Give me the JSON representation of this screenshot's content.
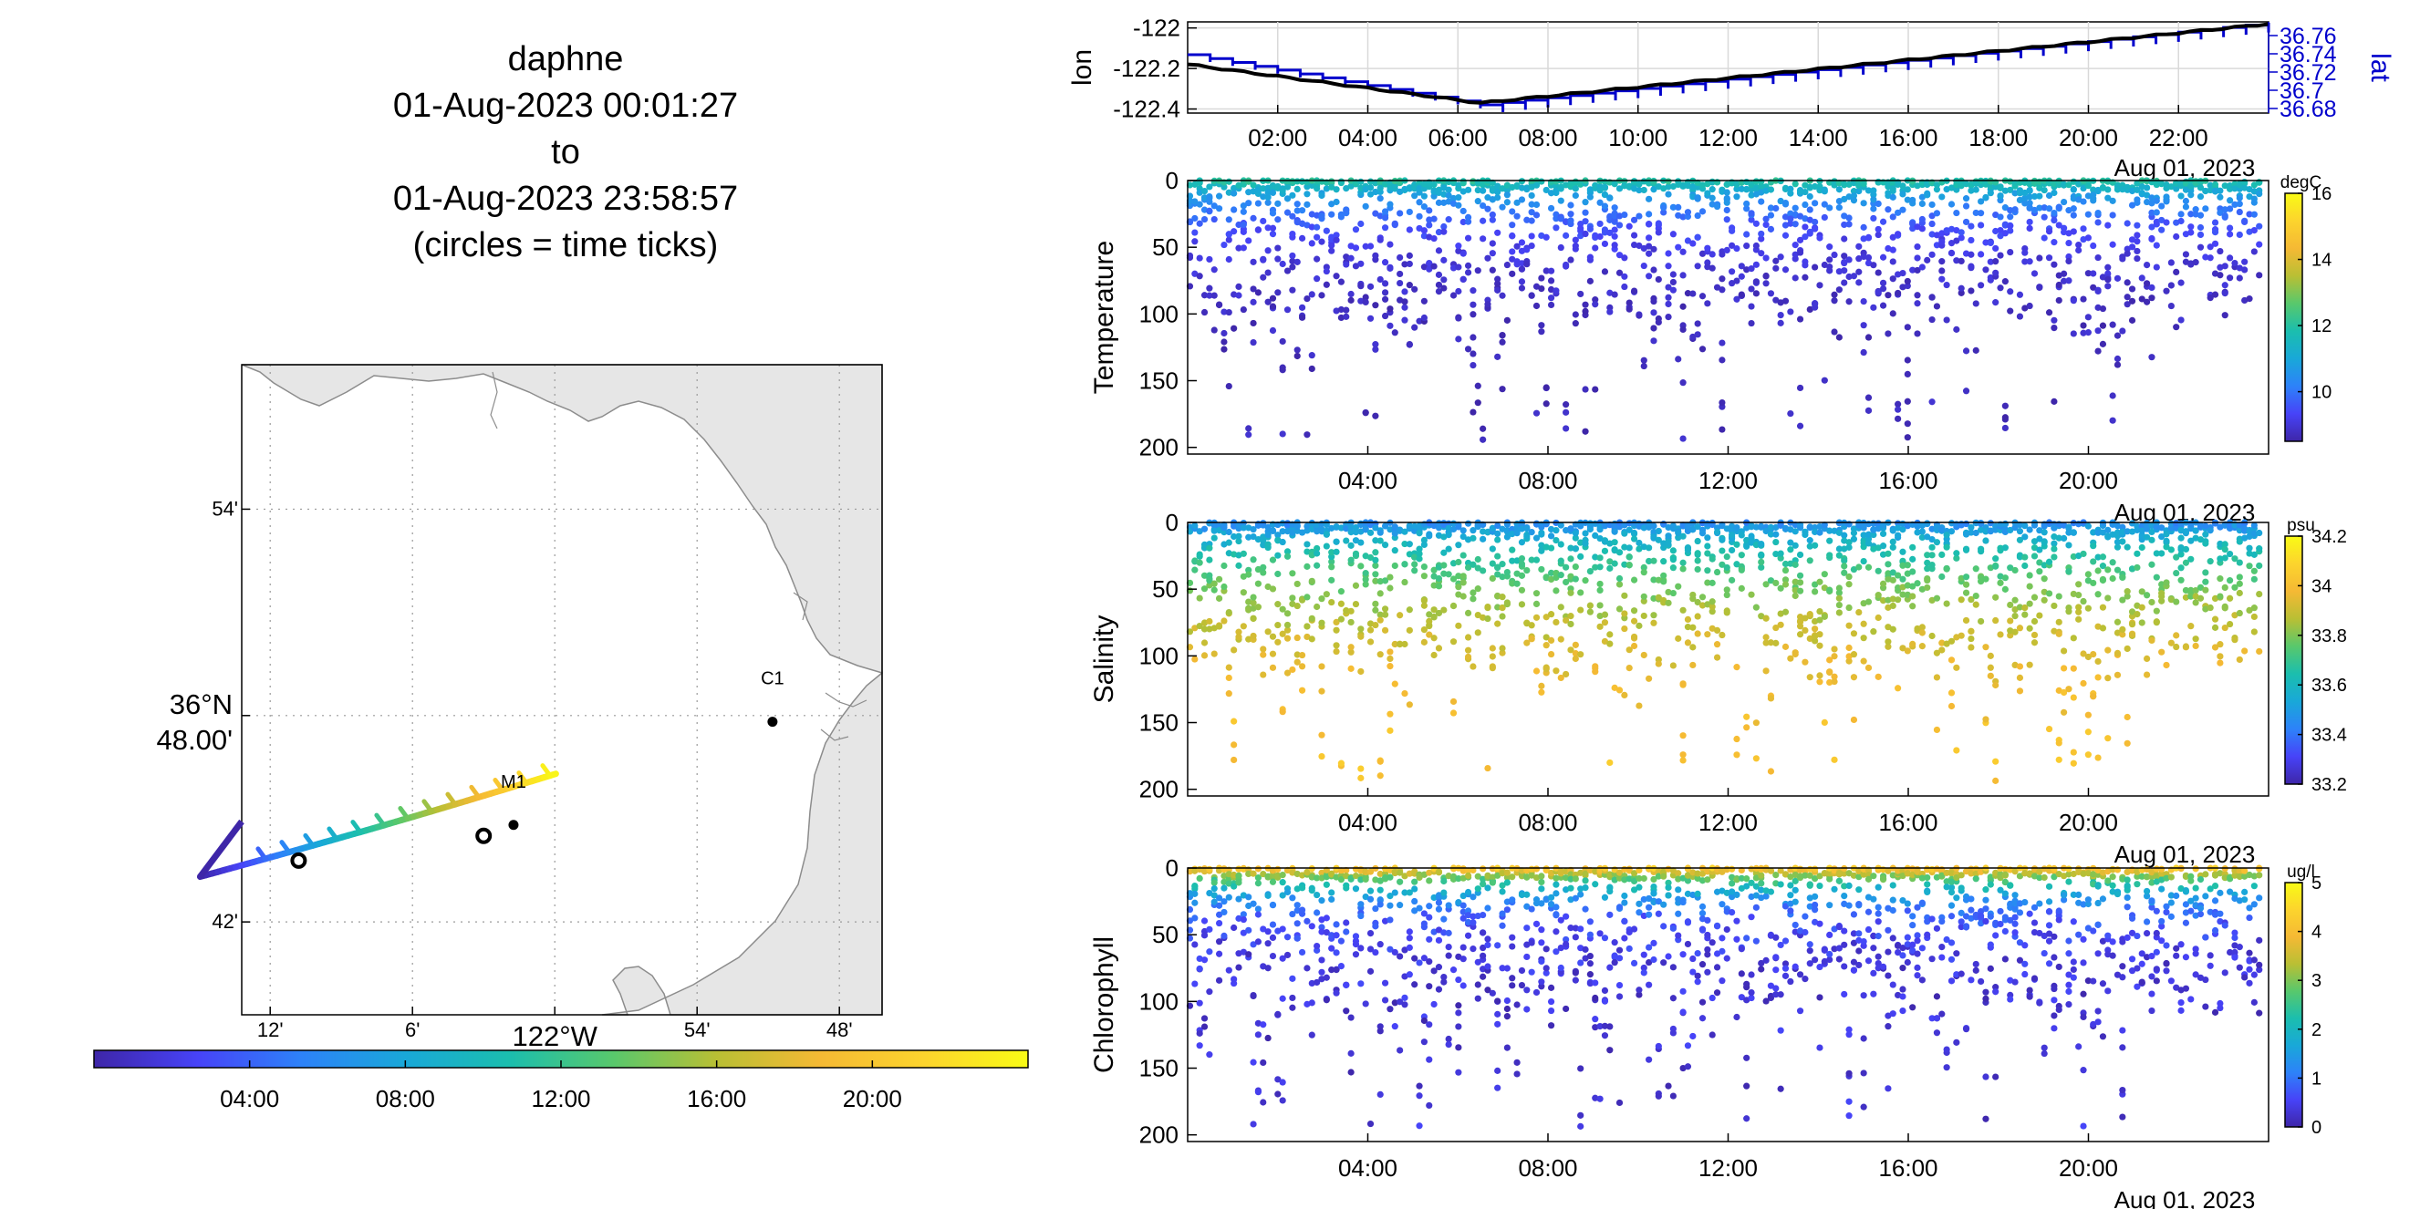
{
  "header": {
    "vehicle": "daphne",
    "start": "01-Aug-2023 00:01:27",
    "to": "to",
    "end": "01-Aug-2023 23:58:57",
    "note": "(circles = time ticks)"
  },
  "colors": {
    "land": "#e6e6e6",
    "coast": "#8c8c8c",
    "lon_line": "#000000",
    "lat_line": "#0000cc",
    "parula": [
      "#3e26a8",
      "#4743f8",
      "#2d82f9",
      "#19a8d8",
      "#1bbeae",
      "#58c86c",
      "#b9bf34",
      "#f5b934",
      "#fcd42d",
      "#f9fb15"
    ]
  },
  "map": {
    "lat_ticks": [
      "54'",
      "36°N\n48.00'",
      "42'"
    ],
    "lon_ticks": [
      "12'",
      "6'",
      "122°W",
      "54'",
      "48'"
    ],
    "stations": [
      {
        "name": "C1",
        "lon": -121.847,
        "lat": 36.797
      },
      {
        "name": "M1",
        "lon": -122.029,
        "lat": 36.747
      }
    ],
    "track": {
      "start": {
        "lon": -122.23,
        "lat": 36.725
      },
      "end": {
        "lon": -121.98,
        "lat": 36.775
      }
    },
    "time_tick_circles": [
      {
        "lon": -122.18,
        "lat": 36.735
      },
      {
        "lon": -122.05,
        "lat": 36.747
      }
    ],
    "colorbar_ticks": [
      "04:00",
      "08:00",
      "12:00",
      "16:00",
      "20:00"
    ]
  },
  "navplot": {
    "ylabel_left": "lon",
    "ylabel_right": "lat",
    "y_ticks_left": [
      "-122",
      "-122.2",
      "-122.4"
    ],
    "y_ticks_right": [
      "36.76",
      "36.74",
      "36.72",
      "36.7",
      "36.68"
    ],
    "x_ticks": [
      "02:00",
      "04:00",
      "06:00",
      "08:00",
      "10:00",
      "12:00",
      "14:00",
      "16:00",
      "18:00",
      "20:00",
      "22:00"
    ],
    "date_label": "Aug 01, 2023"
  },
  "chart_data": [
    {
      "type": "line",
      "title": "",
      "xlabel": "Aug 01, 2023",
      "x_range_hours": [
        0,
        24
      ],
      "series": [
        {
          "name": "lon",
          "x_hours": [
            0,
            6.5,
            24
          ],
          "values": [
            -122.18,
            -122.37,
            -121.98
          ],
          "ylim": [
            -122.42,
            -121.97
          ]
        },
        {
          "name": "lat",
          "x_hours": [
            0,
            6.5,
            24
          ],
          "values": [
            36.735,
            36.68,
            36.77
          ],
          "ylim": [
            36.675,
            36.775
          ]
        }
      ]
    },
    {
      "type": "scatter",
      "ylabel": "Temperature",
      "units": "degC",
      "ylim": [
        0,
        205
      ],
      "clim": [
        8.5,
        16
      ],
      "colorbar_ticks": [
        "16",
        "14",
        "12",
        "10"
      ],
      "x_ticks": [
        "04:00",
        "08:00",
        "12:00",
        "16:00",
        "20:00"
      ],
      "y_ticks": [
        "0",
        "50",
        "100",
        "150",
        "200"
      ],
      "date_label": "Aug 01, 2023",
      "profile": {
        "surface": 12.0,
        "deep": 8.7,
        "scale": 25
      }
    },
    {
      "type": "scatter",
      "ylabel": "Salinity",
      "units": "psu",
      "ylim": [
        0,
        205
      ],
      "clim": [
        33.2,
        34.2
      ],
      "colorbar_ticks": [
        "34.2",
        "34",
        "33.8",
        "33.6",
        "33.4",
        "33.2"
      ],
      "x_ticks": [
        "04:00",
        "08:00",
        "12:00",
        "16:00",
        "20:00"
      ],
      "y_ticks": [
        "0",
        "50",
        "100",
        "150",
        "200"
      ],
      "date_label": "Aug 01, 2023",
      "profile": {
        "surface": 33.45,
        "deep": 34.05,
        "scale": 60
      }
    },
    {
      "type": "scatter",
      "ylabel": "Chlorophyll",
      "units": "ug/l",
      "ylim": [
        0,
        205
      ],
      "clim": [
        0,
        5
      ],
      "colorbar_ticks": [
        "5",
        "4",
        "3",
        "2",
        "1",
        "0"
      ],
      "x_ticks": [
        "04:00",
        "08:00",
        "12:00",
        "16:00",
        "20:00"
      ],
      "y_ticks": [
        "0",
        "50",
        "100",
        "150",
        "200"
      ],
      "date_label": "Aug 01, 2023",
      "profile": {
        "surface": 4.2,
        "deep": 0.3,
        "scale": 18
      }
    }
  ]
}
